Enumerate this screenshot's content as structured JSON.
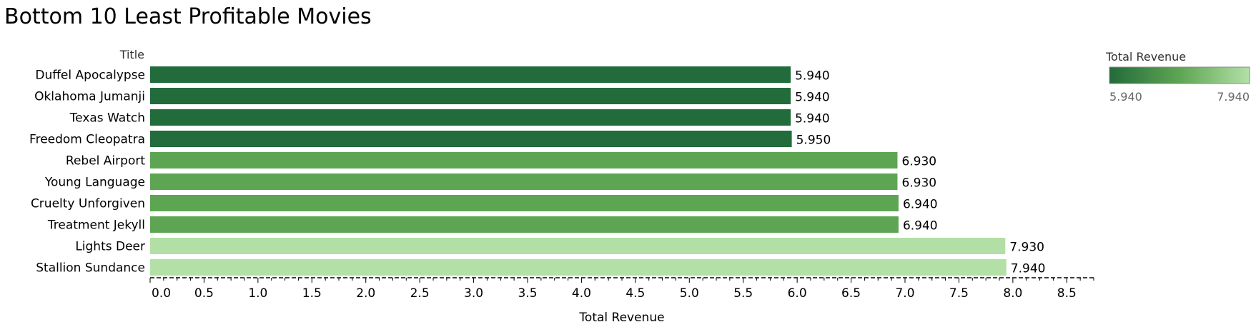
{
  "chart_data": {
    "type": "bar",
    "orientation": "horizontal",
    "title": "Bottom 10 Least Profitable Movies",
    "ytitle": "Title",
    "xlabel": "Total Revenue",
    "xlim": [
      0,
      8.75
    ],
    "xticks": [
      "0.0",
      "0.5",
      "1.0",
      "1.5",
      "2.0",
      "2.5",
      "3.0",
      "3.5",
      "4.0",
      "4.5",
      "5.0",
      "5.5",
      "6.0",
      "6.5",
      "7.0",
      "7.5",
      "8.0",
      "8.5"
    ],
    "grid": false,
    "categories": [
      "Duffel Apocalypse",
      "Oklahoma Jumanji",
      "Texas Watch",
      "Freedom Cleopatra",
      "Rebel Airport",
      "Young Language",
      "Cruelty Unforgiven",
      "Treatment Jekyll",
      "Lights Deer",
      "Stallion Sundance"
    ],
    "values": [
      5.94,
      5.94,
      5.94,
      5.95,
      6.93,
      6.93,
      6.94,
      6.94,
      7.93,
      7.94
    ],
    "value_labels": [
      "5.940",
      "5.940",
      "5.940",
      "5.950",
      "6.930",
      "6.930",
      "6.940",
      "6.940",
      "7.930",
      "7.940"
    ],
    "legend": {
      "title": "Total Revenue",
      "placement": "top-right",
      "min_label": "5.940",
      "max_label": "7.940",
      "color_low": "#226b3b",
      "color_mid": "#5ea553",
      "color_high": "#b3e0a6"
    }
  }
}
